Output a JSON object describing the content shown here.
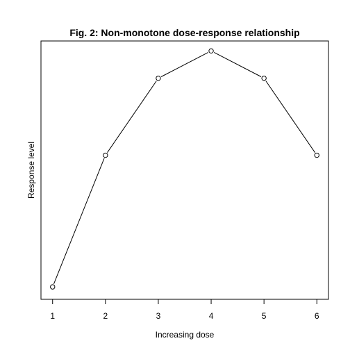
{
  "chart_data": {
    "type": "line",
    "title": "Fig. 2: Non-monotone dose-response relationship",
    "xlabel": "Increasing dose",
    "ylabel": "Response level",
    "x": [
      1,
      2,
      3,
      4,
      5,
      6
    ],
    "values": [
      0.05,
      0.58,
      0.89,
      1.0,
      0.89,
      0.58
    ],
    "xticks": [
      "1",
      "2",
      "3",
      "4",
      "5",
      "6"
    ],
    "xlim": [
      0.78,
      6.22
    ],
    "ylim": [
      0.0,
      1.04
    ],
    "y_ticks_shown": false,
    "grid": false,
    "marker": "open-circle",
    "line_color": "#000000"
  }
}
